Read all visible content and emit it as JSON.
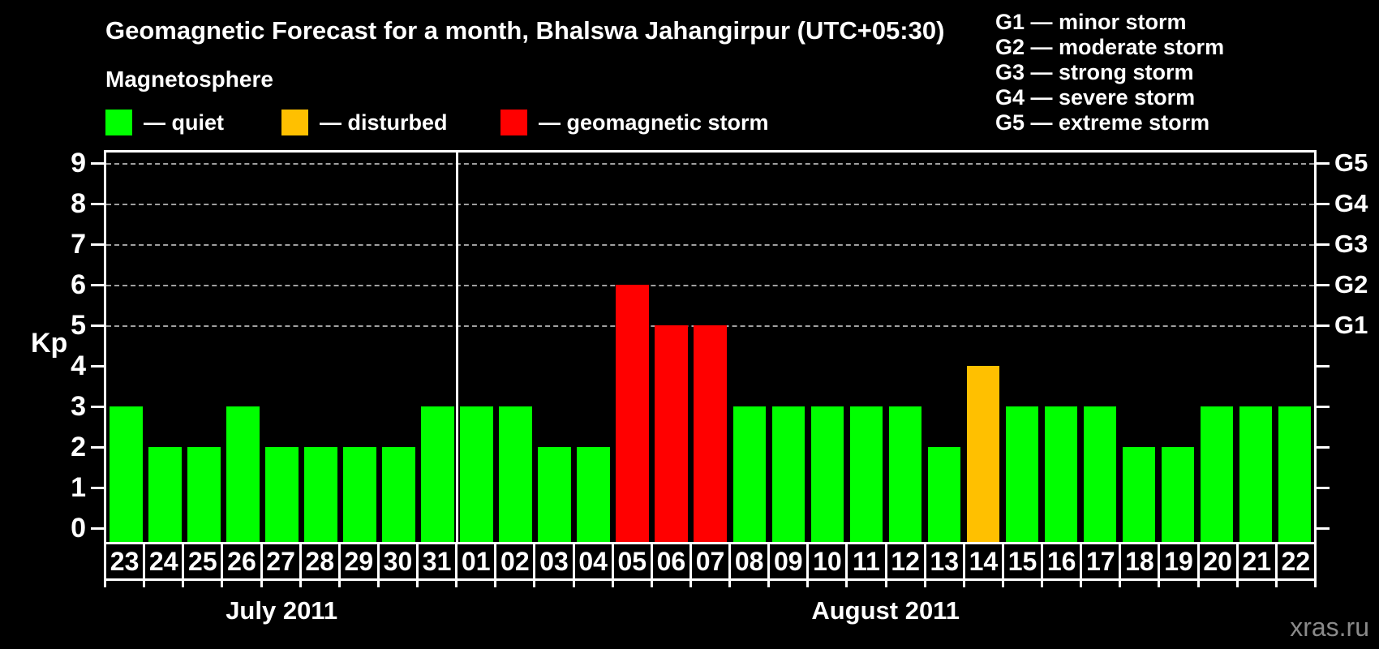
{
  "header": {
    "title": "Geomagnetic Forecast for a month, Bhalswa Jahangirpur (UTC+05:30)",
    "legend_title": "Magnetosphere",
    "legend_items": [
      {
        "status": "quiet",
        "label": "— quiet"
      },
      {
        "status": "disturbed",
        "label": "— disturbed"
      },
      {
        "status": "storm",
        "label": "— geomagnetic storm"
      }
    ],
    "storm_scale": [
      "G1 — minor storm",
      "G2 — moderate storm",
      "G3 — strong storm",
      "G4 — severe storm",
      "G5 — extreme storm"
    ]
  },
  "colors": {
    "quiet": "#00ff00",
    "disturbed": "#ffc000",
    "storm": "#ff0000",
    "grid": "#a0a0a0",
    "axis": "#ffffff",
    "watermark": "#8a8a8a"
  },
  "chart_data": {
    "type": "bar",
    "title": "Geomagnetic Forecast for a month, Bhalswa Jahangirpur (UTC+05:30)",
    "ylabel": "Kp",
    "ylim": [
      0,
      9.3
    ],
    "y_ticks": [
      0,
      1,
      2,
      3,
      4,
      5,
      6,
      7,
      8,
      9
    ],
    "grid_levels": [
      5,
      6,
      7,
      8,
      9
    ],
    "grid_style": "dashed",
    "legend_position": "top-left",
    "right_axis": [
      {
        "label": "G1",
        "kp": 5
      },
      {
        "label": "G2",
        "kp": 6
      },
      {
        "label": "G3",
        "kp": 7
      },
      {
        "label": "G4",
        "kp": 8
      },
      {
        "label": "G5",
        "kp": 9
      }
    ],
    "months": [
      {
        "label": "July 2011",
        "count": 9
      },
      {
        "label": "August 2011",
        "count": 22
      }
    ],
    "categories": [
      "23",
      "24",
      "25",
      "26",
      "27",
      "28",
      "29",
      "30",
      "31",
      "01",
      "02",
      "03",
      "04",
      "05",
      "06",
      "07",
      "08",
      "09",
      "10",
      "11",
      "12",
      "13",
      "14",
      "15",
      "16",
      "17",
      "18",
      "19",
      "20",
      "21",
      "22"
    ],
    "values": [
      3,
      2,
      2,
      3,
      2,
      2,
      2,
      2,
      3,
      3,
      3,
      2,
      2,
      6,
      5,
      5,
      3,
      3,
      3,
      3,
      3,
      2,
      4,
      3,
      3,
      3,
      2,
      2,
      3,
      3,
      3
    ],
    "statuses": [
      "quiet",
      "quiet",
      "quiet",
      "quiet",
      "quiet",
      "quiet",
      "quiet",
      "quiet",
      "quiet",
      "quiet",
      "quiet",
      "quiet",
      "quiet",
      "storm",
      "storm",
      "storm",
      "quiet",
      "quiet",
      "quiet",
      "quiet",
      "quiet",
      "quiet",
      "disturbed",
      "quiet",
      "quiet",
      "quiet",
      "quiet",
      "quiet",
      "quiet",
      "quiet",
      "quiet"
    ]
  },
  "footer": {
    "watermark": "xras.ru"
  }
}
